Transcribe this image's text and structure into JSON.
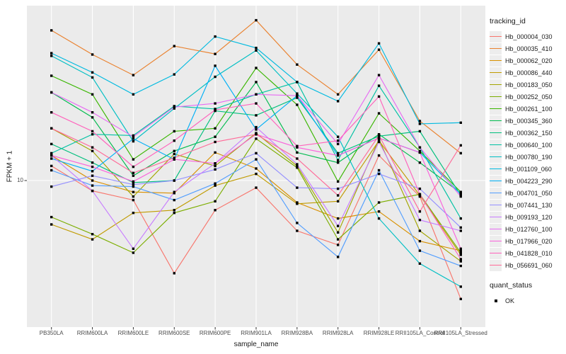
{
  "chart_data": {
    "type": "line",
    "title": "",
    "xlabel": "sample_name",
    "ylabel": "FPKM + 1",
    "y_scale": "log10",
    "ylim": [
      1.7,
      60
    ],
    "y_tick_labels": [
      "10"
    ],
    "grid": true,
    "legend_position": "right",
    "legend_title": "tracking_id",
    "quant_legend_title": "quant_status",
    "quant_ok_label": "OK",
    "panel_bg": "#EBEBEB",
    "grid_color": "#FFFFFF",
    "marker_color": "#000000",
    "categories": [
      "PB350LA",
      "RRIM600LA",
      "RRIM600LE",
      "RRIM600SE",
      "RRIM600PE",
      "RRIM901LA",
      "RRIM928BA",
      "RRIM928LA",
      "RRIM928LE",
      "RRII105LA_Control",
      "RRII105LA_Stressed"
    ],
    "series": [
      {
        "name": "Hb_000004_030",
        "color": "#F8766D",
        "values": [
          11.6,
          9.0,
          8.2,
          3.9,
          7.4,
          9.3,
          6.0,
          5.2,
          12.9,
          8.5,
          3.0
        ]
      },
      {
        "name": "Hb_000035_410",
        "color": "#EA8331",
        "values": [
          46.0,
          36.0,
          29.2,
          39.2,
          36.2,
          51.0,
          32.5,
          24.0,
          37.8,
          18.3,
          13.2
        ]
      },
      {
        "name": "Hb_000062_020",
        "color": "#D89000",
        "values": [
          12.9,
          10.0,
          8.9,
          8.8,
          13.3,
          11.3,
          8.0,
          6.8,
          7.3,
          5.4,
          4.9
        ]
      },
      {
        "name": "Hb_000086_440",
        "color": "#C09B00",
        "values": [
          6.4,
          5.5,
          7.2,
          7.4,
          9.5,
          10.7,
          7.9,
          8.1,
          15.0,
          8.6,
          4.7
        ]
      },
      {
        "name": "Hb_000183_050",
        "color": "#A3A500",
        "values": [
          17.0,
          13.5,
          8.5,
          13.1,
          11.6,
          16.2,
          11.6,
          5.9,
          15.2,
          6.0,
          4.4
        ]
      },
      {
        "name": "Hb_000252_050",
        "color": "#7CAE00",
        "values": [
          6.9,
          5.8,
          4.8,
          7.2,
          8.1,
          15.3,
          11.4,
          5.5,
          8.0,
          8.7,
          4.8
        ]
      },
      {
        "name": "Hb_000261_100",
        "color": "#39B600",
        "values": [
          29.0,
          24.0,
          12.4,
          16.5,
          17.0,
          31.4,
          21.6,
          9.9,
          19.8,
          13.5,
          8.9
        ]
      },
      {
        "name": "Hb_000345_360",
        "color": "#00BB4E",
        "values": [
          24.5,
          19.0,
          10.5,
          13.5,
          15.6,
          27.2,
          13.3,
          12.0,
          16.0,
          12.0,
          8.8
        ]
      },
      {
        "name": "Hb_000362_150",
        "color": "#00BF7D",
        "values": [
          14.5,
          12.0,
          9.8,
          10.0,
          20.3,
          19.4,
          23.2,
          13.2,
          15.7,
          16.5,
          8.6
        ]
      },
      {
        "name": "Hb_000640_100",
        "color": "#00C1A3",
        "values": [
          13.2,
          16.0,
          15.8,
          21.3,
          20.7,
          24.0,
          27.2,
          12.3,
          26.2,
          14.0,
          6.8
        ]
      },
      {
        "name": "Hb_000780_190",
        "color": "#00BFC4",
        "values": [
          35.5,
          28.5,
          14.9,
          20.8,
          28.7,
          37.5,
          24.2,
          15.6,
          6.8,
          4.3,
          3.4
        ]
      },
      {
        "name": "Hb_001109_060",
        "color": "#00BAE0",
        "values": [
          36.5,
          30.0,
          24.0,
          29.4,
          43.2,
          38.5,
          27.2,
          22.4,
          40.3,
          17.8,
          18.0
        ]
      },
      {
        "name": "Hb_004223_290",
        "color": "#00B0F6",
        "values": [
          12.5,
          11.0,
          15.3,
          12.4,
          32.1,
          16.8,
          23.7,
          12.9,
          15.4,
          13.3,
          8.7
        ]
      },
      {
        "name": "Hb_004701_050",
        "color": "#529EFF",
        "values": [
          11.1,
          9.5,
          9.4,
          8.2,
          9.7,
          12.4,
          6.5,
          4.6,
          11.1,
          4.9,
          4.2
        ]
      },
      {
        "name": "Hb_007441_130",
        "color": "#9590FF",
        "values": [
          9.4,
          10.5,
          9.6,
          10.0,
          11.2,
          13.2,
          9.3,
          9.2,
          10.7,
          9.2,
          6.2
        ]
      },
      {
        "name": "Hb_009193_120",
        "color": "#C77CFF",
        "values": [
          12.9,
          9.0,
          5.0,
          8.9,
          11.9,
          17.2,
          11.8,
          6.3,
          14.8,
          6.7,
          6.0
        ]
      },
      {
        "name": "Hb_012760_100",
        "color": "#E76BF3",
        "values": [
          24.5,
          20.0,
          15.6,
          21.1,
          21.9,
          24.0,
          23.7,
          14.5,
          29.2,
          14.0,
          8.5
        ]
      },
      {
        "name": "Hb_017966_020",
        "color": "#FA62DB",
        "values": [
          12.9,
          11.5,
          9.9,
          12.4,
          11.9,
          16.0,
          14.0,
          12.9,
          15.4,
          13.3,
          5.0
        ]
      },
      {
        "name": "Hb_041828_010",
        "color": "#FF62BC",
        "values": [
          20.0,
          16.5,
          11.5,
          15.0,
          20.5,
          21.9,
          14.2,
          15.0,
          23.5,
          8.7,
          4.5
        ]
      },
      {
        "name": "Hb_056691_060",
        "color": "#FF6A98",
        "values": [
          17.0,
          14.0,
          10.8,
          12.6,
          14.8,
          16.0,
          12.5,
          8.6,
          15.8,
          7.3,
          14.3
        ]
      }
    ],
    "point_marker": {
      "shape": "square",
      "color": "#000000",
      "status_label": "OK"
    }
  }
}
